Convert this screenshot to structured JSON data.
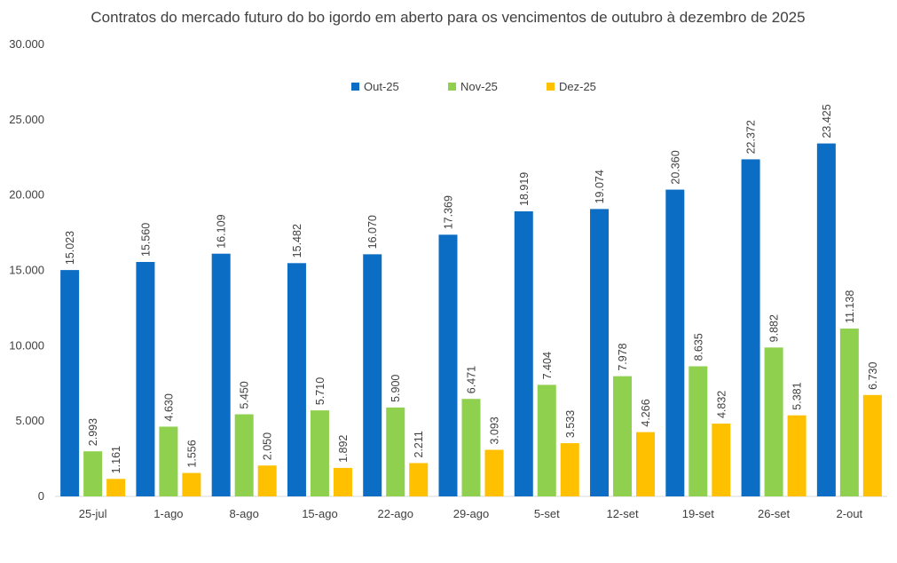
{
  "chart_data": {
    "type": "bar",
    "title": "Contratos do mercado futuro do bo igordo em aberto para os vencimentos de outubro à dezembro de 2025",
    "xlabel": "",
    "ylabel": "",
    "ylim": [
      0,
      30000
    ],
    "yticks": [
      0,
      5000,
      10000,
      15000,
      20000,
      25000,
      30000
    ],
    "ytick_labels": [
      "0",
      "5.000",
      "10.000",
      "15.000",
      "20.000",
      "25.000",
      "30.000"
    ],
    "grid": false,
    "legend_position": "top-center",
    "categories": [
      "25-jul",
      "1-ago",
      "8-ago",
      "15-ago",
      "22-ago",
      "29-ago",
      "5-set",
      "12-set",
      "19-set",
      "26-set",
      "2-out"
    ],
    "series": [
      {
        "name": "Out-25",
        "color": "#0B6DC3",
        "values": [
          15023,
          15560,
          16109,
          15482,
          16070,
          17369,
          18919,
          19074,
          20360,
          22372,
          23425
        ],
        "labels": [
          "15.023",
          "15.560",
          "16.109",
          "15.482",
          "16.070",
          "17.369",
          "18.919",
          "19.074",
          "20.360",
          "22.372",
          "23.425"
        ]
      },
      {
        "name": "Nov-25",
        "color": "#8FD14F",
        "values": [
          2993,
          4630,
          5450,
          5710,
          5900,
          6471,
          7404,
          7978,
          8635,
          9882,
          11138
        ],
        "labels": [
          "2.993",
          "4.630",
          "5.450",
          "5.710",
          "5.900",
          "6.471",
          "7.404",
          "7.978",
          "8.635",
          "9.882",
          "11.138"
        ]
      },
      {
        "name": "Dez-25",
        "color": "#FFC000",
        "values": [
          1161,
          1556,
          2050,
          1892,
          2211,
          3093,
          3533,
          4266,
          4832,
          5381,
          6730
        ],
        "labels": [
          "1.161",
          "1.556",
          "2.050",
          "1.892",
          "2.211",
          "3.093",
          "3.533",
          "4.266",
          "4.832",
          "5.381",
          "6.730"
        ]
      }
    ]
  }
}
